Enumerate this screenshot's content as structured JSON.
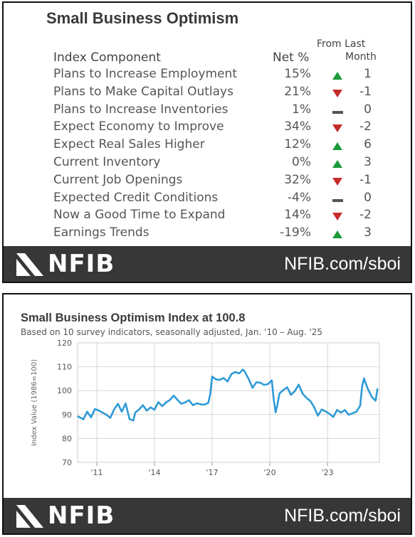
{
  "table": {
    "title": "Small Business Optimism",
    "header_component": "Index Component",
    "header_net": "Net %",
    "header_change_line1": "From Last",
    "header_change_line2": "Month",
    "rows": [
      {
        "label": "Plans to Increase Employment",
        "net": "15%",
        "dir": "up",
        "change": "1"
      },
      {
        "label": "Plans to Make Capital Outlays",
        "net": "21%",
        "dir": "down",
        "change": "-1"
      },
      {
        "label": "Plans to Increase Inventories",
        "net": "1%",
        "dir": "flat",
        "change": "0"
      },
      {
        "label": "Expect Economy to Improve",
        "net": "34%",
        "dir": "down",
        "change": "-2"
      },
      {
        "label": "Expect Real Sales Higher",
        "net": "12%",
        "dir": "up",
        "change": "6"
      },
      {
        "label": "Current Inventory",
        "net": "0%",
        "dir": "up",
        "change": "3"
      },
      {
        "label": "Current Job Openings",
        "net": "32%",
        "dir": "down",
        "change": "-1"
      },
      {
        "label": "Expected Credit Conditions",
        "net": "-4%",
        "dir": "flat",
        "change": "0"
      },
      {
        "label": "Now a Good Time to Expand",
        "net": "14%",
        "dir": "down",
        "change": "-2"
      },
      {
        "label": "Earnings Trends",
        "net": "-19%",
        "dir": "up",
        "change": "3"
      }
    ]
  },
  "footer": {
    "brand": "NFIB",
    "url": "NFIB.com/sboi"
  },
  "colors": {
    "up": "#1e9a3c",
    "down": "#c62b2b",
    "flat": "#555555",
    "line": "#2e9ad6",
    "footer": "#373737"
  },
  "chart_data": {
    "type": "line",
    "title": "Small Business Optimism Index at 100.8",
    "subtitle": "Based on 10 survey indicators, seasonally adjusted,  Jan. '10 – Aug. '25",
    "ylabel": "Index Value (1986=100)",
    "xlabel": "",
    "ylim": [
      70,
      120
    ],
    "yticks": [
      70,
      80,
      90,
      100,
      110,
      120
    ],
    "xlim": [
      2010.0,
      2025.7
    ],
    "xticks": [
      {
        "v": 2011,
        "label": "'11"
      },
      {
        "v": 2014,
        "label": "'14"
      },
      {
        "v": 2017,
        "label": "'17"
      },
      {
        "v": 2020,
        "label": "'20"
      },
      {
        "v": 2023,
        "label": "'23"
      }
    ],
    "grid": true,
    "series": [
      {
        "x": [
          2010.0,
          2010.3,
          2010.5,
          2010.7,
          2010.9,
          2011.1,
          2011.3,
          2011.5,
          2011.7,
          2011.9,
          2012.1,
          2012.3,
          2012.5,
          2012.7,
          2012.9,
          2013.0,
          2013.2,
          2013.4,
          2013.6,
          2013.8,
          2014.0,
          2014.2,
          2014.4,
          2014.6,
          2014.8,
          2015.0,
          2015.2,
          2015.4,
          2015.6,
          2015.8,
          2016.0,
          2016.2,
          2016.4,
          2016.6,
          2016.8,
          2016.9,
          2017.0,
          2017.2,
          2017.4,
          2017.6,
          2017.8,
          2018.0,
          2018.2,
          2018.4,
          2018.6,
          2018.7,
          2018.9,
          2019.1,
          2019.3,
          2019.5,
          2019.7,
          2019.9,
          2020.1,
          2020.2,
          2020.3,
          2020.4,
          2020.5,
          2020.7,
          2020.9,
          2021.1,
          2021.3,
          2021.5,
          2021.7,
          2021.9,
          2022.1,
          2022.3,
          2022.5,
          2022.7,
          2022.9,
          2023.1,
          2023.3,
          2023.5,
          2023.7,
          2023.9,
          2024.1,
          2024.3,
          2024.5,
          2024.7,
          2024.8,
          2024.9,
          2025.0,
          2025.1,
          2025.3,
          2025.5,
          2025.6
        ],
        "y": [
          89.3,
          88.0,
          91.2,
          88.8,
          92.3,
          91.7,
          90.8,
          89.9,
          88.6,
          92.1,
          94.5,
          91.2,
          94.6,
          88.1,
          87.5,
          90.8,
          92.1,
          93.9,
          91.6,
          93.0,
          92.0,
          95.2,
          93.5,
          95.0,
          96.1,
          97.9,
          96.1,
          94.5,
          95.1,
          96.0,
          93.9,
          94.7,
          94.3,
          94.1,
          94.9,
          98.4,
          105.9,
          104.7,
          104.5,
          105.3,
          103.8,
          106.9,
          107.8,
          107.2,
          108.8,
          107.9,
          104.8,
          101.2,
          103.5,
          103.3,
          102.4,
          102.7,
          104.3,
          96.4,
          90.9,
          94.4,
          98.8,
          100.2,
          101.4,
          98.2,
          99.8,
          102.5,
          98.8,
          97.0,
          95.7,
          93.2,
          89.5,
          92.1,
          91.3,
          90.3,
          89.0,
          91.9,
          90.8,
          91.9,
          89.9,
          90.5,
          91.2,
          93.7,
          101.7,
          105.1,
          102.8,
          100.7,
          97.4,
          95.8,
          100.8
        ]
      }
    ]
  }
}
